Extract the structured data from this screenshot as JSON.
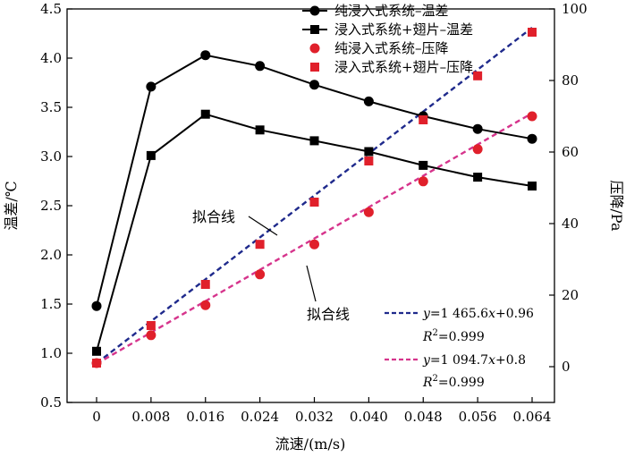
{
  "chart_data": {
    "type": "line",
    "x": [
      0,
      0.008,
      0.016,
      0.024,
      0.032,
      0.04,
      0.048,
      0.056,
      0.064
    ],
    "x_tick_labels": [
      "0",
      "0.008",
      "0.016",
      "0.024",
      "0.032",
      "0.040",
      "0.048",
      "0.056",
      "0.064"
    ],
    "xlabel": "流速/(m/s)",
    "ylabel_left": "温差/℃",
    "ylabel_right": "压降/Pa",
    "ylim_left": [
      0.5,
      4.5
    ],
    "ylim_right": [
      -10,
      100
    ],
    "y_left_ticks": [
      "0.5",
      "1.0",
      "1.5",
      "2.0",
      "2.5",
      "3.0",
      "3.5",
      "4.0",
      "4.5"
    ],
    "y_right_ticks": [
      "0",
      "20",
      "40",
      "60",
      "80",
      "100"
    ],
    "grid": false,
    "legend_position": "top-right",
    "series": [
      {
        "name": "纯浸入式系统–温差",
        "axis": "left",
        "marker": "circle",
        "color": "#000000",
        "line": true,
        "values": [
          1.48,
          3.71,
          4.03,
          3.92,
          3.73,
          3.56,
          3.41,
          3.28,
          3.18
        ]
      },
      {
        "name": "浸入式系统+翅片–温差",
        "axis": "left",
        "marker": "square",
        "color": "#000000",
        "line": true,
        "values": [
          1.02,
          3.01,
          3.43,
          3.27,
          3.16,
          3.05,
          2.91,
          2.79,
          2.7
        ]
      },
      {
        "name": "纯浸入式系统–压降",
        "axis": "right",
        "marker": "circle",
        "color": "#e0202b",
        "line": false,
        "values": [
          1.0,
          8.8,
          17.2,
          25.8,
          34.2,
          43.2,
          51.8,
          60.8,
          70.0
        ]
      },
      {
        "name": "浸入式系统+翅片–压降",
        "axis": "right",
        "marker": "square",
        "color": "#e0202b",
        "line": false,
        "values": [
          1.0,
          11.5,
          23.0,
          34.2,
          46.0,
          57.5,
          69.0,
          81.3,
          93.5
        ]
      }
    ],
    "fits": [
      {
        "color": "#1f2a8c",
        "slope": 1465.6,
        "intercept": 0.96,
        "x_range": [
          0,
          0.064
        ]
      },
      {
        "color": "#d6348c",
        "slope": 1094.7,
        "intercept": 0.8,
        "x_range": [
          0,
          0.064
        ]
      }
    ],
    "annotations": {
      "fit_label_upper": "拟合线",
      "fit_label_lower": "拟合线",
      "eq1_y": "y",
      "eq1_rest": "=1 465.6",
      "eq1_x": "x",
      "eq1_tail": "+0.96",
      "r2_1_r": "R",
      "r2_1_sup": "2",
      "r2_1_val": "=0.999",
      "eq2_y": "y",
      "eq2_rest": "=1 094.7",
      "eq2_x": "x",
      "eq2_tail": "+0.8",
      "r2_2_r": "R",
      "r2_2_sup": "2",
      "r2_2_val": "=0.999"
    }
  }
}
